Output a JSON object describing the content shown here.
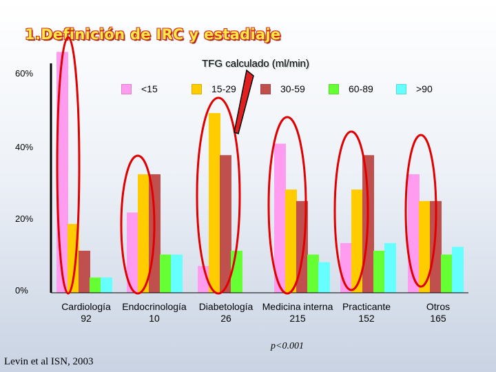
{
  "slide": {
    "title": "1.Definición de IRC y estadiaje",
    "p_value": "p<0.001",
    "citation": "Levin et al ISN, 2003"
  },
  "chart_data": {
    "type": "bar",
    "title": "TFG calculado (ml/min)",
    "xlabel": "",
    "ylabel": "",
    "ylim": [
      0,
      60
    ],
    "y_ticks": [
      "0%",
      "20%",
      "40%",
      "60%"
    ],
    "categories": [
      "Cardiología",
      "Endocrinología",
      "Diabetología",
      "Medicina interna",
      "Practicante",
      "Otros"
    ],
    "category_counts": [
      "92",
      "10",
      "26",
      "215",
      "152",
      "165"
    ],
    "series": [
      {
        "name": "<15",
        "color": "#ff9cf0",
        "values": [
          63,
          21,
          7,
          39,
          13,
          31
        ]
      },
      {
        "name": "15-29",
        "color": "#ffcc00",
        "values": [
          18,
          31,
          47,
          27,
          27,
          24
        ]
      },
      {
        "name": "30-59",
        "color": "#c0504d",
        "values": [
          11,
          31,
          36,
          24,
          36,
          24
        ]
      },
      {
        "name": "60-89",
        "color": "#66ff33",
        "values": [
          4,
          10,
          11,
          10,
          11,
          10
        ]
      },
      {
        "name": ">90",
        "color": "#66ffff",
        "values": [
          4,
          10,
          0,
          8,
          13,
          12
        ]
      }
    ],
    "legend_position": "top",
    "grid": false,
    "annotations": "red ovals circle each category group; red arrow points from the chart title to the 15-29 series"
  }
}
